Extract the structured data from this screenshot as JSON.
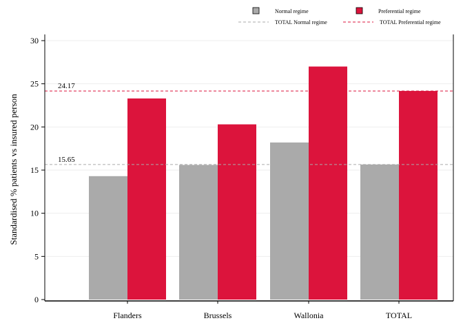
{
  "chart_data": {
    "type": "bar",
    "title": "",
    "xlabel": "",
    "ylabel": "Standardised % patients vs insured person",
    "categories": [
      "Flanders",
      "Brussels",
      "Wallonia",
      "TOTAL"
    ],
    "series": [
      {
        "name": "Normal regime",
        "color": "#aaaaaa",
        "values": [
          14.3,
          15.6,
          18.2,
          15.65
        ]
      },
      {
        "name": "Preferential regime",
        "color": "#dc143c",
        "values": [
          23.3,
          20.3,
          27.0,
          24.17
        ]
      }
    ],
    "reference_lines": [
      {
        "name": "TOTAL Normal regime",
        "value": 15.65,
        "label": "15.65",
        "color": "#aaaaaa",
        "style": "dashed"
      },
      {
        "name": "TOTAL Preferential regime",
        "value": 24.17,
        "label": "24.17",
        "color": "#dc143c",
        "style": "dashed"
      }
    ],
    "ylim": [
      0,
      30
    ],
    "yticks": [
      0,
      5,
      10,
      15,
      20,
      25,
      30
    ],
    "grid": true,
    "legend_position": "top-right"
  }
}
